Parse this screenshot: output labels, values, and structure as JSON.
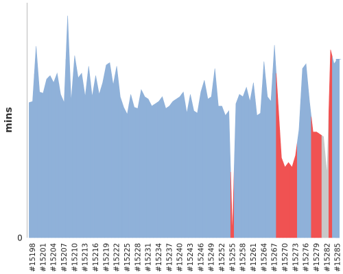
{
  "chart_data": {
    "type": "area",
    "title": "",
    "xlabel": "",
    "ylabel": "mins",
    "y_tick_labels": [
      "0"
    ],
    "ylim": [
      0,
      1
    ],
    "grid": false,
    "legend": "none",
    "colors": {
      "passing": "#8fb1d9",
      "failing": "#f05252",
      "other": "#c8c8c8",
      "axis": "#bbbbbb"
    },
    "x": [
      "#15197",
      "#15198",
      "#15199",
      "#15200",
      "#15201",
      "#15202",
      "#15203",
      "#15204",
      "#15205",
      "#15206",
      "#15207",
      "#15208",
      "#15209",
      "#15210",
      "#15211",
      "#15212",
      "#15213",
      "#15214",
      "#15215",
      "#15216",
      "#15217",
      "#15218",
      "#15219",
      "#15220",
      "#15221",
      "#15222",
      "#15223",
      "#15224",
      "#15225",
      "#15226",
      "#15227",
      "#15228",
      "#15229",
      "#15230",
      "#15231",
      "#15232",
      "#15233",
      "#15234",
      "#15235",
      "#15236",
      "#15237",
      "#15238",
      "#15239",
      "#15240",
      "#15241",
      "#15242",
      "#15243",
      "#15244",
      "#15245",
      "#15246",
      "#15247",
      "#15248",
      "#15249",
      "#15250",
      "#15251",
      "#15252",
      "#15253",
      "#15254",
      "#15255",
      "#15256",
      "#15257",
      "#15258",
      "#15259",
      "#15260",
      "#15261",
      "#15262",
      "#15263",
      "#15264",
      "#15265",
      "#15266",
      "#15267",
      "#15268",
      "#15269",
      "#15270",
      "#15271",
      "#15272",
      "#15273",
      "#15274",
      "#15275",
      "#15276",
      "#15277",
      "#15278",
      "#15279",
      "#15280",
      "#15281",
      "#15282",
      "#15283",
      "#15284",
      "#15285",
      "#15286"
    ],
    "x_tick_labels": [
      "#15198",
      "#15201",
      "#15204",
      "#15207",
      "#15210",
      "#15213",
      "#15216",
      "#15219",
      "#15222",
      "#15225",
      "#15228",
      "#15231",
      "#15234",
      "#15237",
      "#15240",
      "#15243",
      "#15246",
      "#15249",
      "#15252",
      "#15255",
      "#15258",
      "#15261",
      "#15264",
      "#15267",
      "#15270",
      "#15273",
      "#15276",
      "#15279",
      "#15282",
      "#15285"
    ],
    "values": [
      0.575,
      0.58,
      0.815,
      0.62,
      0.615,
      0.675,
      0.69,
      0.66,
      0.7,
      0.61,
      0.575,
      0.945,
      0.58,
      0.775,
      0.68,
      0.7,
      0.6,
      0.73,
      0.6,
      0.69,
      0.61,
      0.66,
      0.735,
      0.745,
      0.65,
      0.73,
      0.6,
      0.555,
      0.525,
      0.61,
      0.555,
      0.55,
      0.63,
      0.6,
      0.59,
      0.56,
      0.57,
      0.58,
      0.6,
      0.55,
      0.56,
      0.58,
      0.59,
      0.6,
      0.62,
      0.53,
      0.61,
      0.54,
      0.53,
      0.62,
      0.67,
      0.59,
      0.6,
      0.72,
      0.56,
      0.56,
      0.52,
      0.54,
      0.02,
      0.57,
      0.61,
      0.6,
      0.64,
      0.58,
      0.66,
      0.52,
      0.53,
      0.75,
      0.6,
      0.58,
      0.82,
      0.58,
      0.34,
      0.3,
      0.32,
      0.3,
      0.35,
      0.46,
      0.72,
      0.74,
      0.58,
      0.45,
      0.45,
      0.44,
      0.43,
      0.27,
      0.8,
      0.74,
      0.76,
      0.76
    ],
    "status": [
      "pass",
      "pass",
      "pass",
      "pass",
      "pass",
      "pass",
      "pass",
      "pass",
      "pass",
      "pass",
      "pass",
      "pass",
      "pass",
      "pass",
      "pass",
      "pass",
      "pass",
      "pass",
      "pass",
      "pass",
      "pass",
      "pass",
      "pass",
      "pass",
      "pass",
      "pass",
      "pass",
      "pass",
      "pass",
      "pass",
      "pass",
      "pass",
      "pass",
      "pass",
      "pass",
      "pass",
      "pass",
      "pass",
      "pass",
      "pass",
      "pass",
      "pass",
      "pass",
      "pass",
      "pass",
      "pass",
      "pass",
      "pass",
      "pass",
      "pass",
      "pass",
      "pass",
      "pass",
      "pass",
      "pass",
      "pass",
      "pass",
      "pass",
      "fail",
      "pass",
      "pass",
      "pass",
      "pass",
      "pass",
      "pass",
      "pass",
      "pass",
      "pass",
      "pass",
      "pass",
      "pass",
      "fail",
      "fail",
      "fail",
      "fail",
      "fail",
      "fail",
      "pass",
      "pass",
      "pass",
      "pass",
      "fail",
      "fail",
      "fail",
      "other",
      "other",
      "fail",
      "pass",
      "pass",
      "pass"
    ]
  }
}
